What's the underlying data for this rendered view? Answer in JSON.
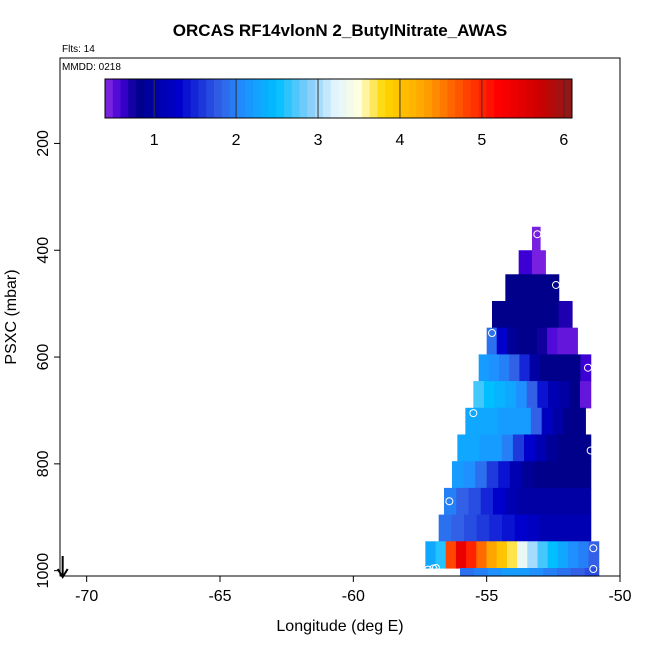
{
  "chart_data": {
    "type": "heatmap",
    "title": "ORCAS RF14vlonN 2_ButylNitrate_AWAS",
    "flights_label": "Flts: 14",
    "date_label": "MMDD: 0218",
    "xlabel": "Longitude (deg E)",
    "ylabel": "PSXC (mbar)",
    "xlim": [
      -71,
      -50
    ],
    "ylim": [
      1010,
      40
    ],
    "x_ticks": [
      -70,
      -65,
      -60,
      -55,
      -50
    ],
    "x_tick_labels": [
      "-70",
      "-65",
      "-60",
      "-55",
      "-50"
    ],
    "y_ticks": [
      200,
      400,
      600,
      800,
      1000
    ],
    "y_tick_labels": [
      "200",
      "400",
      "600",
      "800",
      "1000"
    ],
    "colorbar": {
      "range": [
        0.4,
        6.1
      ],
      "ticks": [
        1,
        2,
        3,
        4,
        5,
        6
      ],
      "tick_labels": [
        "1",
        "2",
        "3",
        "4",
        "5",
        "6"
      ]
    },
    "color_stops": [
      {
        "v": 0.4,
        "c": "#8a2be2"
      },
      {
        "v": 0.6,
        "c": "#3d00d4"
      },
      {
        "v": 0.8,
        "c": "#00008b"
      },
      {
        "v": 1.3,
        "c": "#0000cd"
      },
      {
        "v": 1.8,
        "c": "#3260e6"
      },
      {
        "v": 2.1,
        "c": "#1e90ff"
      },
      {
        "v": 2.5,
        "c": "#00bfff"
      },
      {
        "v": 2.9,
        "c": "#87cefa"
      },
      {
        "v": 3.2,
        "c": "#e0f4ff"
      },
      {
        "v": 3.5,
        "c": "#ffffe0"
      },
      {
        "v": 3.8,
        "c": "#ffd700"
      },
      {
        "v": 4.3,
        "c": "#ffa500"
      },
      {
        "v": 4.8,
        "c": "#ff4500"
      },
      {
        "v": 5.2,
        "c": "#ff0000"
      },
      {
        "v": 5.7,
        "c": "#cd0000"
      },
      {
        "v": 6.1,
        "c": "#8b1a1a"
      }
    ],
    "bands": [
      {
        "p_top": 356,
        "p_bot": 400,
        "x_left": -53.3,
        "x_right": -53.0,
        "values": [
          0.45
        ]
      },
      {
        "p_top": 400,
        "p_bot": 445,
        "x_left": -53.8,
        "x_right": -52.8,
        "values": [
          0.6,
          0.45
        ]
      },
      {
        "p_top": 445,
        "p_bot": 495,
        "x_left": -54.3,
        "x_right": -52.3,
        "values": [
          0.8,
          0.8,
          0.8,
          0.8
        ]
      },
      {
        "p_top": 495,
        "p_bot": 545,
        "x_left": -54.8,
        "x_right": -51.8,
        "values": [
          0.8,
          0.8,
          0.8,
          0.8,
          0.8,
          0.7
        ]
      },
      {
        "p_top": 545,
        "p_bot": 595,
        "x_left": -55.0,
        "x_right": -51.6,
        "values": [
          1.9,
          1.3,
          0.9,
          0.8,
          0.8,
          0.75,
          0.55,
          0.5,
          0.5
        ]
      },
      {
        "p_top": 595,
        "p_bot": 645,
        "x_left": -55.3,
        "x_right": -51.1,
        "values": [
          2.2,
          2.1,
          2.0,
          1.8,
          1.5,
          1.0,
          0.8,
          0.8,
          0.8,
          0.8,
          0.6
        ]
      },
      {
        "p_top": 645,
        "p_bot": 695,
        "x_left": -55.5,
        "x_right": -51.1,
        "values": [
          2.7,
          2.5,
          2.4,
          2.3,
          2.1,
          1.8,
          1.4,
          1.1,
          1.0,
          0.8,
          0.5
        ]
      },
      {
        "p_top": 695,
        "p_bot": 745,
        "x_left": -55.8,
        "x_right": -51.3,
        "values": [
          2.3,
          2.3,
          2.3,
          2.2,
          2.2,
          2.2,
          1.8,
          1.2,
          1.0,
          0.8,
          0.8
        ]
      },
      {
        "p_top": 745,
        "p_bot": 795,
        "x_left": -56.1,
        "x_right": -51.1,
        "values": [
          2.3,
          2.3,
          2.2,
          2.2,
          2.0,
          1.6,
          1.3,
          1.1,
          0.9,
          0.8,
          0.8,
          0.8
        ]
      },
      {
        "p_top": 795,
        "p_bot": 845,
        "x_left": -56.3,
        "x_right": -51.1,
        "values": [
          2.2,
          2.1,
          1.9,
          1.6,
          1.4,
          1.1,
          0.9,
          0.8,
          0.8,
          0.8,
          0.8,
          0.8
        ]
      },
      {
        "p_top": 845,
        "p_bot": 895,
        "x_left": -56.6,
        "x_right": -51.1,
        "values": [
          2.0,
          1.8,
          1.7,
          1.5,
          1.3,
          1.1,
          1.0,
          1.0,
          1.0,
          1.0,
          1.0,
          1.0
        ]
      },
      {
        "p_top": 895,
        "p_bot": 945,
        "x_left": -56.8,
        "x_right": -51.1,
        "values": [
          1.9,
          1.8,
          1.7,
          1.6,
          1.5,
          1.4,
          1.3,
          1.2,
          1.1,
          1.1,
          1.1,
          1.1
        ]
      },
      {
        "p_top": 945,
        "p_bot": 995,
        "x_left": -57.3,
        "x_right": -50.8,
        "values": [
          2.3,
          2.6,
          4.8,
          5.4,
          5.0,
          4.6,
          4.3,
          4.0,
          3.7,
          3.3,
          3.0,
          2.7,
          2.5,
          2.3,
          2.1,
          2.0,
          1.8
        ]
      },
      {
        "p_top": 995,
        "p_bot": 1010,
        "x_left": -56.0,
        "x_right": -50.8,
        "values": [
          1.9,
          2.0,
          2.1,
          2.2,
          2.2,
          2.1,
          2.0,
          1.9,
          1.8,
          1.7
        ]
      }
    ],
    "points": [
      {
        "x": -53.1,
        "p": 370
      },
      {
        "x": -52.4,
        "p": 465
      },
      {
        "x": -54.8,
        "p": 555
      },
      {
        "x": -51.2,
        "p": 620
      },
      {
        "x": -55.5,
        "p": 705
      },
      {
        "x": -51.1,
        "p": 775
      },
      {
        "x": -56.4,
        "p": 870
      },
      {
        "x": -51.0,
        "p": 958
      },
      {
        "x": -57.2,
        "p": 998
      },
      {
        "x": -57.0,
        "p": 996
      },
      {
        "x": -56.9,
        "p": 995
      },
      {
        "x": -51.0,
        "p": 997
      }
    ],
    "arrow_x": -70.9
  }
}
